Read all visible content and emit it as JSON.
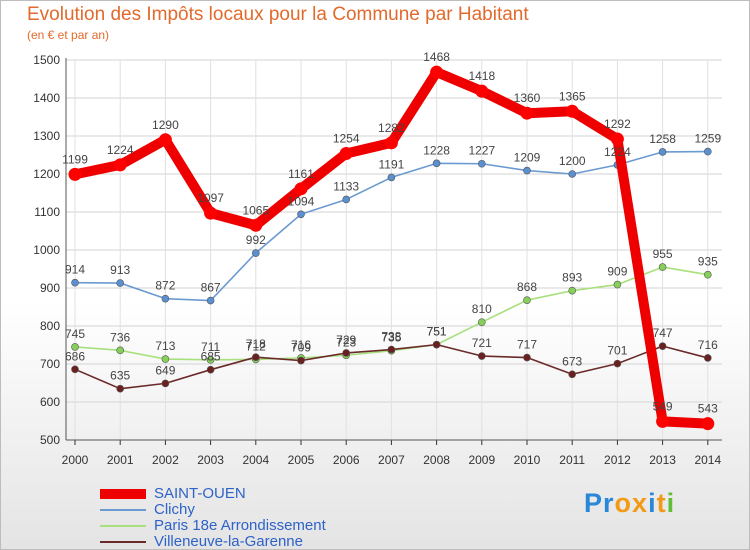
{
  "header": {
    "title": "Evolution des Impôts locaux pour la Commune par Habitant",
    "subtitle": "(en € et par an)"
  },
  "chart_data": {
    "type": "line",
    "title": "Evolution des Impôts locaux pour la Commune par Habitant",
    "subtitle": "(en € et par an)",
    "xlabel": "",
    "ylabel": "",
    "ylim": [
      500,
      1500
    ],
    "yticks": [
      500,
      600,
      700,
      800,
      900,
      1000,
      1100,
      1200,
      1300,
      1400,
      1500
    ],
    "grid": true,
    "legend_position": "bottom-left",
    "categories": [
      "2000",
      "2001",
      "2002",
      "2003",
      "2004",
      "2005",
      "2006",
      "2007",
      "2008",
      "2009",
      "2010",
      "2011",
      "2012",
      "2013",
      "2014"
    ],
    "series": [
      {
        "name": "SAINT-OUEN",
        "color": "#ee0000",
        "marker": "#ff0000",
        "values": [
          1199,
          1224,
          1290,
          1097,
          1065,
          1161,
          1254,
          1282,
          1468,
          1418,
          1360,
          1365,
          1292,
          549,
          543
        ]
      },
      {
        "name": "Clichy",
        "color": "#6b9ad1",
        "marker": "#5a8fd0",
        "values": [
          914,
          913,
          872,
          867,
          992,
          1094,
          1133,
          1191,
          1228,
          1227,
          1209,
          1200,
          1224,
          1258,
          1259
        ]
      },
      {
        "name": "Paris 18e  Arrondissement",
        "color": "#a9e07d",
        "marker": "#86d05a",
        "values": [
          745,
          736,
          713,
          711,
          712,
          716,
          723,
          735,
          751,
          810,
          868,
          893,
          909,
          955,
          935
        ]
      },
      {
        "name": "Villeneuve-la-Garenne",
        "color": "#6b2a2a",
        "marker": "#6b2020",
        "values": [
          686,
          635,
          649,
          685,
          718,
          709,
          729,
          738,
          751,
          721,
          717,
          673,
          701,
          747,
          716
        ]
      }
    ]
  },
  "logo": {
    "text": "Proxiti",
    "letter_colors": [
      "#2a87d8",
      "#2a87d8",
      "#f29a16",
      "#f29a16",
      "#2a87d8",
      "#f29a16",
      "#5fbf3a"
    ]
  }
}
